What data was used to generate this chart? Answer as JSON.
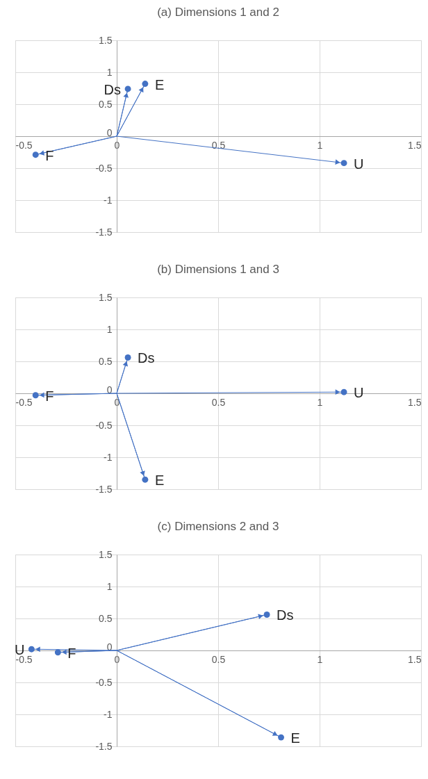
{
  "chart_data": [
    {
      "type": "scatter",
      "title": "(a) Dimensions 1 and 2",
      "xlim": [
        -0.5,
        1.5
      ],
      "ylim": [
        -1.5,
        1.5
      ],
      "xticks": [
        -0.5,
        0,
        0.5,
        1,
        1.5
      ],
      "yticks": [
        -1.5,
        -1,
        -0.5,
        0,
        0.5,
        1,
        1.5
      ],
      "grid": true,
      "series": [
        {
          "type": "scatter",
          "marker": "circle",
          "color": "#4472c4",
          "x": [
            0.055,
            0.14,
            -0.4,
            1.12
          ],
          "values": [
            0.74,
            0.82,
            -0.29,
            -0.42
          ]
        },
        {
          "type": "line",
          "marker": "none",
          "color": "#4472c4",
          "x": [
            0,
            0.055,
            0,
            0.14,
            0,
            -0.4,
            0,
            1.12
          ],
          "values": [
            0,
            0.74,
            0,
            0.82,
            0,
            -0.29,
            0,
            -0.42
          ]
        }
      ],
      "annotations": [
        {
          "text": "Ds",
          "x": 0.055,
          "y": 0.74
        },
        {
          "text": "E",
          "x": 0.14,
          "y": 0.82
        },
        {
          "text": "F",
          "x": -0.4,
          "y": -0.29
        },
        {
          "text": "U",
          "x": 1.12,
          "y": -0.42
        }
      ]
    },
    {
      "type": "scatter",
      "title": "(b) Dimensions 1 and 3",
      "xlim": [
        -0.5,
        1.5
      ],
      "ylim": [
        -1.5,
        1.5
      ],
      "xticks": [
        -0.5,
        0,
        0.5,
        1,
        1.5
      ],
      "yticks": [
        -1.5,
        -1,
        -0.5,
        0,
        0.5,
        1,
        1.5
      ],
      "grid": true,
      "series": [
        {
          "type": "scatter",
          "marker": "circle",
          "color": "#4472c4",
          "x": [
            0.055,
            0.14,
            -0.4,
            1.12
          ],
          "values": [
            0.56,
            -1.35,
            -0.03,
            0.02
          ]
        },
        {
          "type": "line",
          "marker": "none",
          "color": "#4472c4",
          "x": [
            0,
            0.055,
            0,
            0.14,
            0,
            -0.4,
            0,
            1.12
          ],
          "values": [
            0,
            0.56,
            0,
            -1.35,
            0,
            -0.03,
            0,
            0.02
          ]
        }
      ],
      "annotations": [
        {
          "text": "Ds",
          "x": 0.055,
          "y": 0.56
        },
        {
          "text": "E",
          "x": 0.14,
          "y": -1.35
        },
        {
          "text": "F",
          "x": -0.4,
          "y": -0.03
        },
        {
          "text": "U",
          "x": 1.12,
          "y": 0.02
        }
      ]
    },
    {
      "type": "scatter",
      "title": "(c) Dimensions 2 and 3",
      "xlim": [
        -0.5,
        1.5
      ],
      "ylim": [
        -1.5,
        1.5
      ],
      "xticks": [
        -0.5,
        0,
        0.5,
        1,
        1.5
      ],
      "yticks": [
        -1.5,
        -1,
        -0.5,
        0,
        0.5,
        1,
        1.5
      ],
      "grid": true,
      "series": [
        {
          "type": "scatter",
          "marker": "circle",
          "color": "#4472c4",
          "x": [
            0.74,
            0.81,
            -0.29,
            -0.42
          ],
          "values": [
            0.56,
            -1.36,
            -0.03,
            0.02
          ]
        },
        {
          "type": "line",
          "marker": "none",
          "color": "#4472c4",
          "x": [
            0,
            0.74,
            0,
            0.81,
            0,
            -0.29,
            0,
            -0.42
          ],
          "values": [
            0,
            0.56,
            0,
            -1.36,
            0,
            -0.03,
            0,
            0.02
          ]
        }
      ],
      "annotations": [
        {
          "text": "Ds",
          "x": 0.74,
          "y": 0.56
        },
        {
          "text": "E",
          "x": 0.81,
          "y": -1.36
        },
        {
          "text": "F",
          "x": -0.29,
          "y": -0.03
        },
        {
          "text": "U",
          "x": -0.42,
          "y": 0.02
        }
      ]
    }
  ]
}
